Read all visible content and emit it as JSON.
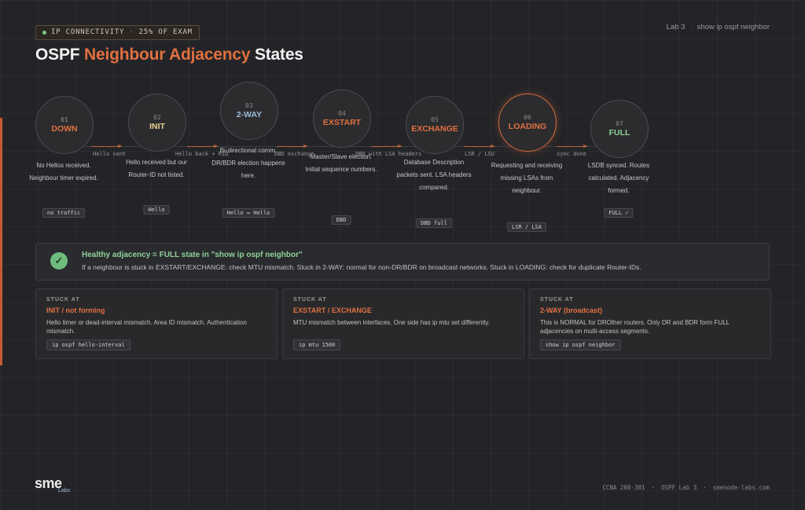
{
  "header": {
    "tag_section": "IP CONNECTIVITY",
    "tag_weight": "25% OF EXAM",
    "lab_number": "Lab 3",
    "lab_command": "show ip ospf neighbor",
    "title_pre": "OSPF ",
    "title_highlight": "Neighbour Adjacency",
    "title_post": " States"
  },
  "states": [
    {
      "num": "01",
      "name": "DOWN",
      "name_color": "#e0703f",
      "active": false,
      "desc": "No Hellos received. Neighbour timer expired.",
      "pill": "no traffic"
    },
    {
      "num": "02",
      "name": "INIT",
      "name_color": "#e6cf8f",
      "active": false,
      "desc": "Hello received but our Router-ID not listed.",
      "pill": "Hello"
    },
    {
      "num": "03",
      "name": "2-WAY",
      "name_color": "#9fbcd8",
      "active": false,
      "desc": "Bi-directional comm. DR/BDR election happens here.",
      "pill": "Hello ↔ Hello"
    },
    {
      "num": "04",
      "name": "EXSTART",
      "name_color": "#e0703f",
      "active": false,
      "desc": "Master/Slave election. Initial sequence numbers.",
      "pill": "DBD"
    },
    {
      "num": "05",
      "name": "EXCHANGE",
      "name_color": "#e0703f",
      "active": false,
      "desc": "Database Description packets sent. LSA headers compared.",
      "pill": "DBD full"
    },
    {
      "num": "06",
      "name": "LOADING",
      "name_color": "#e0703f",
      "active": true,
      "desc": "Requesting and receiving missing LSAs from neighbour.",
      "pill": "LSR / LSA"
    },
    {
      "num": "07",
      "name": "FULL",
      "name_color": "#8fd29b",
      "active": false,
      "desc": "LSDB synced. Routes calculated. Adjacency formed.",
      "pill": "FULL ✓"
    }
  ],
  "transitions": [
    "Hello sent",
    "Hello back + RID",
    "DBD exchange",
    "DBD with LSA headers",
    "LSR / LSU",
    "sync done"
  ],
  "health": {
    "icon": "check-icon",
    "title": "Healthy adjacency = FULL state in \"show ip ospf neighbor\"",
    "body": "If a neighbour is stuck in EXSTART/EXCHANGE: check MTU mismatch. Stuck in 2-WAY: normal for non-DR/BDR on broadcast networks. Stuck in LOADING: check for duplicate Router-IDs."
  },
  "cards": [
    {
      "label": "STUCK AT",
      "title": "INIT / not forming",
      "body": "Hello timer or dead-interval mismatch. Area ID mismatch. Authentication mismatch.",
      "code": "ip ospf hello-interval"
    },
    {
      "label": "STUCK AT",
      "title": "EXSTART / EXCHANGE",
      "body": "MTU mismatch between interfaces. One side has ip mtu set differently.",
      "code": "ip mtu 1500"
    },
    {
      "label": "STUCK AT",
      "title": "2-WAY (broadcast)",
      "body": "This is NORMAL for DROther routers. Only DR and BDR form FULL adjacencies on multi-access segments.",
      "code": "show ip ospf neighbor"
    }
  ],
  "footer": {
    "logo_main": "sme",
    "logo_sub": "Labs",
    "exam": "CCNA 200-301",
    "lab": "OSPF Lab 3",
    "site": "smenode-labs.com"
  },
  "colors": {
    "accent": "#e0703f",
    "success": "#8fd29b",
    "info": "#9fbcd8"
  }
}
